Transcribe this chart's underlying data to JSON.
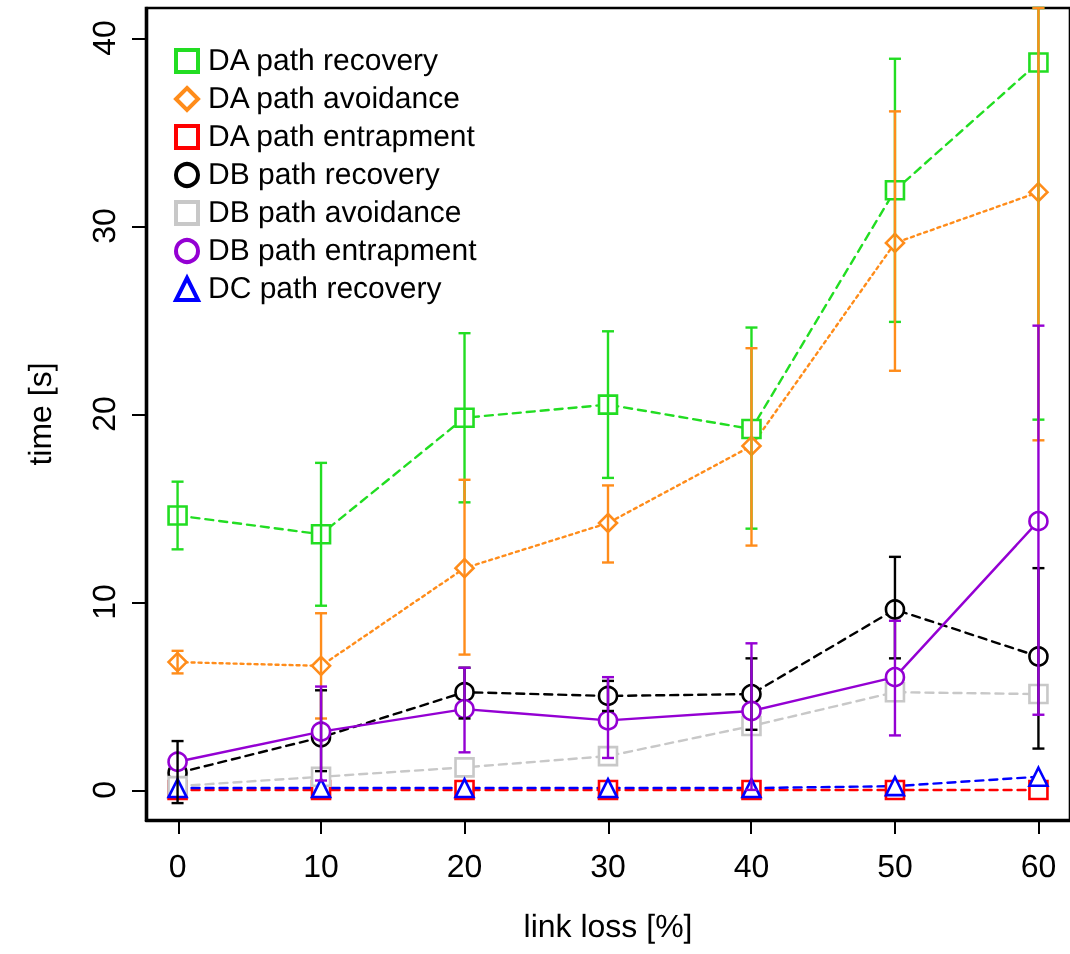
{
  "chart_data": {
    "type": "line",
    "xlabel": "link loss [%]",
    "ylabel": "time [s]",
    "x": [
      0,
      10,
      20,
      30,
      40,
      50,
      60
    ],
    "xlim": [
      -2.2,
      62.2
    ],
    "xticks": [
      0,
      10,
      20,
      30,
      40,
      50,
      60
    ],
    "ylim": [
      -1.6,
      41.6
    ],
    "yticks": [
      0,
      10,
      20,
      30,
      40
    ],
    "grid": false,
    "legend": "top left",
    "series": [
      {
        "name": "DA path recovery",
        "color": "#22dd22",
        "marker": "square",
        "line_style": "dashed",
        "values": [
          14.6,
          13.6,
          19.8,
          20.5,
          19.2,
          31.9,
          38.7
        ],
        "errors": [
          [
            12.8,
            16.4
          ],
          [
            9.8,
            17.4
          ],
          [
            15.3,
            24.3
          ],
          [
            16.6,
            24.4
          ],
          [
            13.9,
            24.6
          ],
          [
            24.9,
            38.9
          ],
          [
            19.7,
            41.6
          ]
        ]
      },
      {
        "name": "DA path avoidance",
        "color": "#ff8c1a",
        "marker": "diamond",
        "line_style": "dotted",
        "values": [
          6.8,
          6.6,
          11.8,
          14.2,
          18.3,
          29.1,
          31.8
        ],
        "errors": [
          [
            6.2,
            7.4
          ],
          [
            3.8,
            9.4
          ],
          [
            7.2,
            16.5
          ],
          [
            12.1,
            16.2
          ],
          [
            13.0,
            23.5
          ],
          [
            22.3,
            36.1
          ],
          [
            18.6,
            41.6
          ]
        ]
      },
      {
        "name": "DA path entrapment",
        "color": "#ff0000",
        "marker": "square",
        "line_style": "dashed",
        "values": [
          0,
          0,
          0,
          0,
          0,
          0,
          0
        ]
      },
      {
        "name": "DB path recovery",
        "color": "#000000",
        "marker": "circle",
        "line_style": "dashed",
        "values": [
          0.9,
          2.8,
          5.2,
          5.0,
          5.1,
          9.6,
          7.1
        ],
        "errors": [
          [
            -0.7,
            2.6
          ],
          [
            1.0,
            5.3
          ],
          [
            3.8,
            6.5
          ],
          [
            4.2,
            5.8
          ],
          [
            3.2,
            7.0
          ],
          [
            7.0,
            12.4
          ],
          [
            2.2,
            11.8
          ]
        ]
      },
      {
        "name": "DB path avoidance",
        "color": "#c8c8c8",
        "marker": "square",
        "line_style": "dashed",
        "values": [
          0.2,
          0.7,
          1.2,
          1.8,
          3.4,
          5.2,
          5.1
        ]
      },
      {
        "name": "DB path entrapment",
        "color": "#9400d3",
        "marker": "circle",
        "line_style": "solid",
        "values": [
          1.5,
          3.1,
          4.3,
          3.7,
          4.2,
          6.0,
          14.3
        ],
        "errors": [
          null,
          [
            0.5,
            5.5
          ],
          [
            2.0,
            6.5
          ],
          [
            1.7,
            6.0
          ],
          [
            0.0,
            7.8
          ],
          [
            2.9,
            9.0
          ],
          [
            4.0,
            24.7
          ]
        ]
      },
      {
        "name": "DC path recovery",
        "color": "#0000ff",
        "marker": "triangle",
        "line_style": "dashed",
        "values": [
          0.1,
          0.1,
          0.1,
          0.1,
          0.1,
          0.2,
          0.7
        ]
      }
    ]
  }
}
